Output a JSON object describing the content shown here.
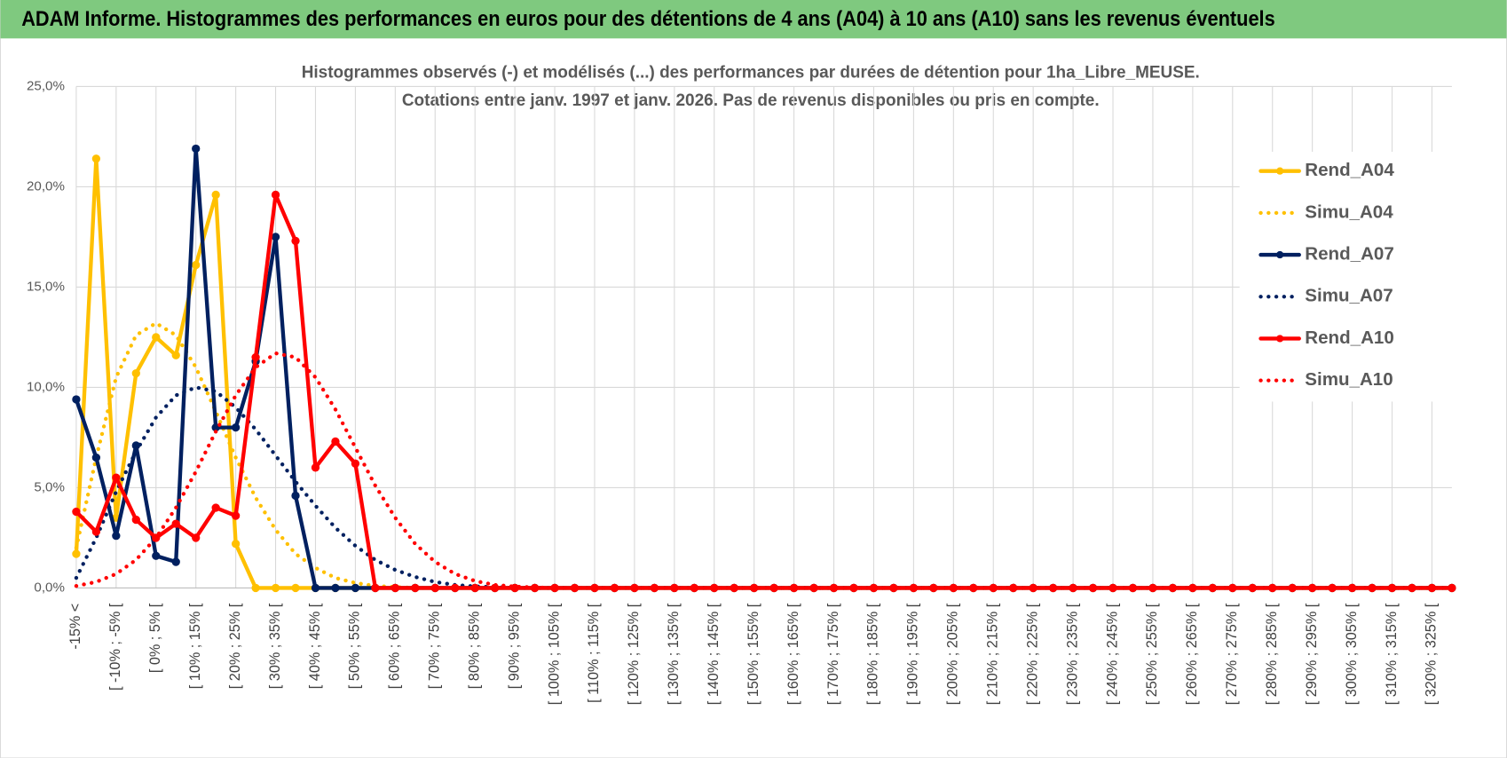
{
  "chart_data": {
    "type": "line",
    "header": "ADAM Informe. Histogrammes des performances en euros pour des détentions de 4 ans (A04) à 10 ans (A10) sans les revenus éventuels",
    "title": "Histogrammes observés (-) et modélisés (...) des performances par durées de détention pour 1ha_Libre_MEUSE.",
    "subtitle": "Cotations entre janv. 1997 et janv. 2026. Pas de revenus disponibles ou pris en compte.",
    "categories": [
      "-15% <",
      null,
      "[ -10% ; -5% [",
      null,
      "[ 0% ; 5% [",
      null,
      "[ 10% ; 15% [",
      null,
      "[ 20% ; 25% [",
      null,
      "[ 30% ; 35% [",
      null,
      "[ 40% ; 45% [",
      null,
      "[ 50% ; 55% [",
      null,
      "[ 60% ; 65% [",
      null,
      "[ 70% ; 75% [",
      null,
      "[ 80% ; 85% [",
      null,
      "[ 90% ; 95% [",
      null,
      "[ 100% ; 105% [",
      null,
      "[ 110% ; 115% [",
      null,
      "[ 120% ; 125% [",
      null,
      "[ 130% ; 135% [",
      null,
      "[ 140% ; 145% [",
      null,
      "[ 150% ; 155% [",
      null,
      "[ 160% ; 165% [",
      null,
      "[ 170% ; 175% [",
      null,
      "[ 180% ; 185% [",
      null,
      "[ 190% ; 195% [",
      null,
      "[ 200% ; 205% [",
      null,
      "[ 210% ; 215% [",
      null,
      "[ 220% ; 225% [",
      null,
      "[ 230% ; 235% [",
      null,
      "[ 240% ; 245% [",
      null,
      "[ 250% ; 255% [",
      null,
      "[ 260% ; 265% [",
      null,
      "[ 270% ; 275% [",
      null,
      "[ 280% ; 285% [",
      null,
      "[ 290% ; 295% [",
      null,
      "[ 300% ; 305% [",
      null,
      "[ 310% ; 315% [",
      null,
      "[ 320% ; 325% [",
      null
    ],
    "series": [
      {
        "name": "Rend_A04",
        "color": "#ffc000",
        "line_style": "solid",
        "markers": true,
        "values": [
          1.7,
          21.4,
          3.5,
          10.7,
          12.5,
          11.6,
          16.1,
          19.6,
          2.2,
          0,
          0,
          0,
          0,
          0,
          0,
          0,
          0,
          0,
          0,
          0,
          0,
          0,
          0,
          0,
          0,
          0,
          0,
          0,
          0,
          0,
          0,
          0,
          0,
          0,
          0,
          0,
          0,
          0,
          0,
          0,
          0,
          0,
          0,
          0,
          0,
          0,
          0,
          0,
          0,
          0,
          0,
          0,
          0,
          0,
          0,
          0,
          0,
          0,
          0,
          0,
          0,
          0,
          0,
          0,
          0,
          0,
          0,
          0,
          0,
          0
        ]
      },
      {
        "name": "Simu_A04",
        "color": "#ffc000",
        "line_style": "dotted",
        "markers": false,
        "values": [
          2.0,
          6.5,
          10.5,
          12.6,
          13.2,
          12.6,
          11.0,
          8.8,
          6.5,
          4.5,
          2.9,
          1.7,
          1.0,
          0.5,
          0.25,
          0.1,
          0.05,
          0,
          0,
          0,
          0,
          0,
          0,
          0,
          0,
          0,
          0,
          0,
          0,
          0,
          0,
          0,
          0,
          0,
          0,
          0,
          0,
          0,
          0,
          0,
          0,
          0,
          0,
          0,
          0,
          0,
          0,
          0,
          0,
          0,
          0,
          0,
          0,
          0,
          0,
          0,
          0,
          0,
          0,
          0,
          0,
          0,
          0,
          0,
          0,
          0,
          0,
          0,
          0,
          0
        ]
      },
      {
        "name": "Rend_A07",
        "color": "#002060",
        "line_style": "solid",
        "markers": true,
        "values": [
          9.4,
          6.5,
          2.6,
          7.1,
          1.6,
          1.3,
          21.9,
          8.0,
          8.0,
          11.3,
          17.5,
          4.6,
          0,
          0,
          0,
          0,
          0,
          0,
          0,
          0,
          0,
          0,
          0,
          0,
          0,
          0,
          0,
          0,
          0,
          0,
          0,
          0,
          0,
          0,
          0,
          0,
          0,
          0,
          0,
          0,
          0,
          0,
          0,
          0,
          0,
          0,
          0,
          0,
          0,
          0,
          0,
          0,
          0,
          0,
          0,
          0,
          0,
          0,
          0,
          0,
          0,
          0,
          0,
          0,
          0,
          0,
          0,
          0,
          0,
          0
        ]
      },
      {
        "name": "Simu_A07",
        "color": "#002060",
        "line_style": "dotted",
        "markers": false,
        "values": [
          0.5,
          2.5,
          4.8,
          6.8,
          8.5,
          9.6,
          10.0,
          9.8,
          9.0,
          7.9,
          6.6,
          5.3,
          4.1,
          3.0,
          2.1,
          1.4,
          0.9,
          0.55,
          0.3,
          0.15,
          0.08,
          0.04,
          0,
          0,
          0,
          0,
          0,
          0,
          0,
          0,
          0,
          0,
          0,
          0,
          0,
          0,
          0,
          0,
          0,
          0,
          0,
          0,
          0,
          0,
          0,
          0,
          0,
          0,
          0,
          0,
          0,
          0,
          0,
          0,
          0,
          0,
          0,
          0,
          0,
          0,
          0,
          0,
          0,
          0,
          0,
          0,
          0,
          0,
          0,
          0
        ]
      },
      {
        "name": "Rend_A10",
        "color": "#ff0000",
        "line_style": "solid",
        "markers": true,
        "values": [
          3.8,
          2.8,
          5.5,
          3.4,
          2.5,
          3.2,
          2.5,
          4.0,
          3.6,
          11.5,
          19.6,
          17.3,
          6.0,
          7.3,
          6.2,
          0,
          0,
          0,
          0,
          0,
          0,
          0,
          0,
          0,
          0,
          0,
          0,
          0,
          0,
          0,
          0,
          0,
          0,
          0,
          0,
          0,
          0,
          0,
          0,
          0,
          0,
          0,
          0,
          0,
          0,
          0,
          0,
          0,
          0,
          0,
          0,
          0,
          0,
          0,
          0,
          0,
          0,
          0,
          0,
          0,
          0,
          0,
          0,
          0,
          0,
          0,
          0,
          0,
          0,
          0
        ]
      },
      {
        "name": "Simu_A10",
        "color": "#ff0000",
        "line_style": "dotted",
        "markers": false,
        "values": [
          0.1,
          0.3,
          0.7,
          1.4,
          2.5,
          4.0,
          5.8,
          7.8,
          9.6,
          11.0,
          11.7,
          11.5,
          10.5,
          8.9,
          7.0,
          5.1,
          3.5,
          2.2,
          1.3,
          0.7,
          0.35,
          0.15,
          0.07,
          0.03,
          0,
          0,
          0,
          0,
          0,
          0,
          0,
          0,
          0,
          0,
          0,
          0,
          0,
          0,
          0,
          0,
          0,
          0,
          0,
          0,
          0,
          0,
          0,
          0,
          0,
          0,
          0,
          0,
          0,
          0,
          0,
          0,
          0,
          0,
          0,
          0,
          0,
          0,
          0,
          0,
          0,
          0,
          0,
          0,
          0,
          0
        ]
      }
    ],
    "ylim": [
      0,
      25
    ],
    "yticks": [
      {
        "value": 0,
        "label": "0,0%"
      },
      {
        "value": 5,
        "label": "5,0%"
      },
      {
        "value": 10,
        "label": "10,0%"
      },
      {
        "value": 15,
        "label": "15,0%"
      },
      {
        "value": 20,
        "label": "20,0%"
      },
      {
        "value": 25,
        "label": "25,0%"
      }
    ],
    "grid": true,
    "legend": "right"
  }
}
